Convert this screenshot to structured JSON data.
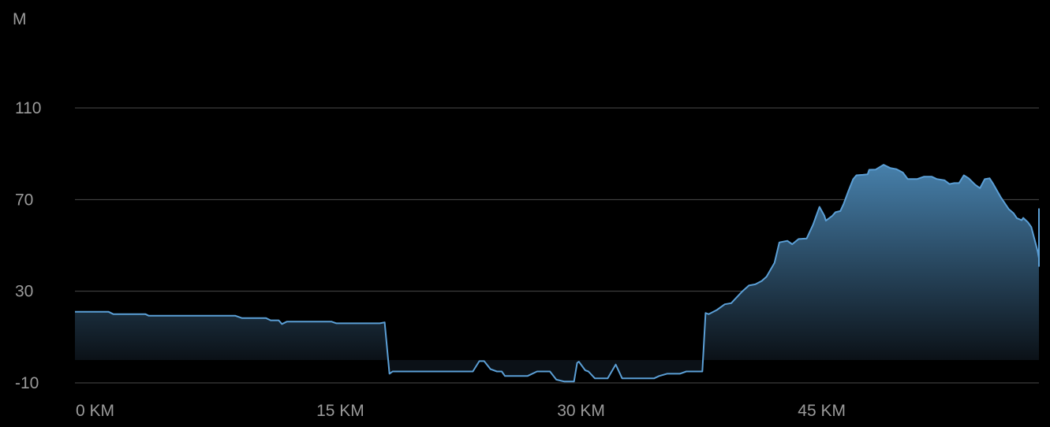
{
  "chart_data": {
    "type": "area",
    "title": "",
    "y_unit_label": "M",
    "xlabel": "",
    "ylabel": "",
    "xlim": [
      0,
      59.6
    ],
    "ylim": [
      -10,
      110
    ],
    "grid": true,
    "y_ticks": [
      {
        "value": 110,
        "label": "110"
      },
      {
        "value": 70,
        "label": "70"
      },
      {
        "value": 30,
        "label": "30"
      },
      {
        "value": -10,
        "label": "-10"
      }
    ],
    "x_ticks": [
      {
        "value": 0,
        "label": "0 KM"
      },
      {
        "value": 15,
        "label": "15 KM"
      },
      {
        "value": 30,
        "label": "30 KM"
      },
      {
        "value": 45,
        "label": "45 KM"
      }
    ],
    "colors": {
      "line": "#5b9fd6",
      "fill_top": "#4a86b3",
      "fill_bottom": "#0b1117",
      "background": "#000000",
      "text": "#9a9a9a",
      "grid": "#4a4a4a"
    },
    "series": [
      {
        "points": [
          [
            0,
            21
          ],
          [
            2.1,
            21
          ],
          [
            2.4,
            20
          ],
          [
            4.4,
            20
          ],
          [
            4.6,
            19.3
          ],
          [
            10,
            19.3
          ],
          [
            10.4,
            18.3
          ],
          [
            11.9,
            18.3
          ],
          [
            12.2,
            17.3
          ],
          [
            12.7,
            17.3
          ],
          [
            12.9,
            15.7
          ],
          [
            13.2,
            16.7
          ],
          [
            16,
            16.7
          ],
          [
            16.3,
            16
          ],
          [
            19,
            16
          ],
          [
            19.3,
            16.4
          ],
          [
            19.6,
            -6
          ],
          [
            19.8,
            -5
          ],
          [
            24.8,
            -5
          ],
          [
            25.2,
            -0.5
          ],
          [
            25.5,
            -0.5
          ],
          [
            25.9,
            -4
          ],
          [
            26.3,
            -5
          ],
          [
            26.6,
            -5
          ],
          [
            26.8,
            -7
          ],
          [
            28.2,
            -7
          ],
          [
            28.8,
            -5
          ],
          [
            29.6,
            -5
          ],
          [
            30,
            -8.6
          ],
          [
            30.5,
            -9.4
          ],
          [
            31.1,
            -9.4
          ],
          [
            31.3,
            -1.3
          ],
          [
            31.4,
            -0.7
          ],
          [
            31.8,
            -4.5
          ],
          [
            32,
            -5
          ],
          [
            32.4,
            -8
          ],
          [
            33.2,
            -8
          ],
          [
            33.7,
            -2
          ],
          [
            34.1,
            -8
          ],
          [
            36.1,
            -8
          ],
          [
            36.4,
            -7
          ],
          [
            36.9,
            -6
          ],
          [
            37.7,
            -6
          ],
          [
            38.1,
            -5
          ],
          [
            39.1,
            -5
          ],
          [
            39.3,
            20.5
          ],
          [
            39.5,
            20
          ],
          [
            40,
            21.8
          ],
          [
            40.5,
            24.3
          ],
          [
            40.9,
            24.8
          ],
          [
            41.6,
            30
          ],
          [
            42,
            32.5
          ],
          [
            42.4,
            33
          ],
          [
            42.8,
            34.5
          ],
          [
            43.1,
            36.4
          ],
          [
            43.6,
            42.4
          ],
          [
            43.9,
            51.3
          ],
          [
            44.4,
            52
          ],
          [
            44.7,
            50.5
          ],
          [
            45.1,
            52.8
          ],
          [
            45.6,
            53
          ],
          [
            46,
            59
          ],
          [
            46.4,
            66.8
          ],
          [
            46.7,
            63
          ],
          [
            46.8,
            60.8
          ],
          [
            47.2,
            62.9
          ],
          [
            47.4,
            64.5
          ],
          [
            47.7,
            65
          ],
          [
            47.9,
            68
          ],
          [
            48.2,
            73.7
          ],
          [
            48.5,
            78.9
          ],
          [
            48.7,
            80.6
          ],
          [
            49.1,
            80.8
          ],
          [
            49.4,
            81
          ],
          [
            49.5,
            83
          ],
          [
            49.9,
            83.1
          ],
          [
            50.4,
            85.2
          ],
          [
            50.8,
            83.8
          ],
          [
            51.2,
            83.3
          ],
          [
            51.6,
            81.8
          ],
          [
            51.9,
            79
          ],
          [
            52.5,
            79
          ],
          [
            52.9,
            80
          ],
          [
            53.4,
            80
          ],
          [
            53.7,
            79
          ],
          [
            54.2,
            78.4
          ],
          [
            54.5,
            76.8
          ],
          [
            54.8,
            77.2
          ],
          [
            55.1,
            77.2
          ],
          [
            55.4,
            80.6
          ],
          [
            55.7,
            79.3
          ],
          [
            56.1,
            76.5
          ],
          [
            56.4,
            75
          ],
          [
            56.7,
            78.9
          ],
          [
            57,
            79.3
          ],
          [
            57.2,
            77.2
          ],
          [
            57.7,
            71
          ],
          [
            58.2,
            65.8
          ],
          [
            58.5,
            64
          ],
          [
            58.7,
            61.9
          ],
          [
            59,
            61
          ],
          [
            59.1,
            62
          ],
          [
            59.4,
            60
          ],
          [
            59.6,
            58
          ],
          [
            60,
            47.4
          ],
          [
            60.3,
            44.4
          ],
          [
            60.5,
            45.5
          ],
          [
            61,
            45.5
          ],
          [
            61.3,
            41
          ],
          [
            61.7,
            44.4
          ],
          [
            62.1,
            51.6
          ],
          [
            62.4,
            56.3
          ],
          [
            62.7,
            60.5
          ],
          [
            63.1,
            63.2
          ],
          [
            63.4,
            65.9
          ],
          [
            63.7,
            64.7
          ],
          [
            64.1,
            64.4
          ],
          [
            64.4,
            64.7
          ],
          [
            64.7,
            65.5
          ],
          [
            64.9,
            64
          ],
          [
            65.2,
            63.8
          ]
        ]
      }
    ]
  }
}
